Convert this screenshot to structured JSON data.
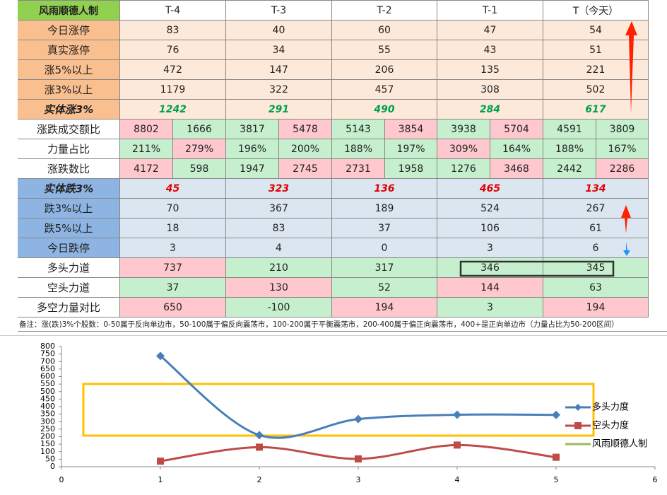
{
  "table": {
    "header": [
      "风雨顺德人制",
      "T-4",
      "T-3",
      "T-2",
      "T-1",
      "T（今天）"
    ],
    "rows": [
      {
        "label": "今日涨停",
        "label_bg": "#fabf8f",
        "cells": [
          "83",
          "40",
          "60",
          "47",
          "54"
        ],
        "fills": [
          "#fde9d9",
          "#fde9d9",
          "#fde9d9",
          "#fde9d9",
          "#fde9d9"
        ]
      },
      {
        "label": "真实涨停",
        "label_bg": "#fabf8f",
        "cells": [
          "76",
          "34",
          "55",
          "43",
          "51"
        ],
        "fills": [
          "#fde9d9",
          "#fde9d9",
          "#fde9d9",
          "#fde9d9",
          "#fde9d9"
        ]
      },
      {
        "label": "涨5%以上",
        "label_bg": "#fabf8f",
        "cells": [
          "472",
          "147",
          "206",
          "135",
          "221"
        ],
        "fills": [
          "#fde9d9",
          "#fde9d9",
          "#fde9d9",
          "#fde9d9",
          "#fde9d9"
        ]
      },
      {
        "label": "涨3%以上",
        "label_bg": "#fabf8f",
        "cells": [
          "1179",
          "322",
          "457",
          "308",
          "502"
        ],
        "fills": [
          "#fde9d9",
          "#fde9d9",
          "#fde9d9",
          "#fde9d9",
          "#fde9d9"
        ]
      },
      {
        "label": "实体涨3%",
        "label_bg": "#fabf8f",
        "cells": [
          "1242",
          "291",
          "490",
          "284",
          "617"
        ],
        "fills": [
          "#fde9d9",
          "#fde9d9",
          "#fde9d9",
          "#fde9d9",
          "#fde9d9"
        ],
        "text_color": "#00a050",
        "italic": true
      },
      {
        "label": "涨跌成交额比",
        "label_bg": "#ffffff",
        "cells": [
          "8802",
          "1666",
          "3817",
          "5478",
          "5143",
          "3854",
          "3938",
          "5704",
          "4591",
          "3809"
        ],
        "fills": [
          "#ffc7ce",
          "#c6efce",
          "#c6efce",
          "#ffc7ce",
          "#c6efce",
          "#ffc7ce",
          "#c6efce",
          "#ffc7ce",
          "#c6efce",
          "#c6efce"
        ]
      },
      {
        "label": "力量占比",
        "label_bg": "#ffffff",
        "cells": [
          "211%",
          "279%",
          "196%",
          "200%",
          "188%",
          "197%",
          "309%",
          "164%",
          "188%",
          "167%"
        ],
        "fills": [
          "#c6efce",
          "#ffc7ce",
          "#c6efce",
          "#c6efce",
          "#c6efce",
          "#c6efce",
          "#ffc7ce",
          "#c6efce",
          "#c6efce",
          "#c6efce"
        ]
      },
      {
        "label": "涨跌数比",
        "label_bg": "#ffffff",
        "cells": [
          "4172",
          "598",
          "1947",
          "2745",
          "2731",
          "1958",
          "1276",
          "3468",
          "2442",
          "2286"
        ],
        "fills": [
          "#ffc7ce",
          "#c6efce",
          "#c6efce",
          "#ffc7ce",
          "#ffc7ce",
          "#c6efce",
          "#c6efce",
          "#ffc7ce",
          "#c6efce",
          "#ffc7ce"
        ]
      },
      {
        "label": "实体跌3%",
        "label_bg": "#8db4e2",
        "cells": [
          "45",
          "323",
          "136",
          "465",
          "134"
        ],
        "fills": [
          "#dce6f1",
          "#dce6f1",
          "#dce6f1",
          "#dce6f1",
          "#dce6f1"
        ],
        "text_color": "#e00000",
        "italic": true
      },
      {
        "label": "跌3%以上",
        "label_bg": "#8db4e2",
        "cells": [
          "70",
          "367",
          "189",
          "524",
          "267"
        ],
        "fills": [
          "#dce6f1",
          "#dce6f1",
          "#dce6f1",
          "#dce6f1",
          "#dce6f1"
        ]
      },
      {
        "label": "跌5%以上",
        "label_bg": "#8db4e2",
        "cells": [
          "18",
          "83",
          "37",
          "106",
          "61"
        ],
        "fills": [
          "#dce6f1",
          "#dce6f1",
          "#dce6f1",
          "#dce6f1",
          "#dce6f1"
        ]
      },
      {
        "label": "今日跌停",
        "label_bg": "#8db4e2",
        "cells": [
          "3",
          "4",
          "0",
          "3",
          "6"
        ],
        "fills": [
          "#dce6f1",
          "#dce6f1",
          "#dce6f1",
          "#dce6f1",
          "#dce6f1"
        ]
      },
      {
        "label": "多头力道",
        "label_bg": "#ffffff",
        "cells": [
          "737",
          "210",
          "317",
          "346",
          "345"
        ],
        "fills": [
          "#ffc7ce",
          "#c6efce",
          "#c6efce",
          "#c6efce",
          "#c6efce"
        ]
      },
      {
        "label": "空头力道",
        "label_bg": "#ffffff",
        "cells": [
          "37",
          "130",
          "52",
          "144",
          "63"
        ],
        "fills": [
          "#c6efce",
          "#ffc7ce",
          "#c6efce",
          "#ffc7ce",
          "#c6efce"
        ]
      },
      {
        "label": "多空力量对比",
        "label_bg": "#ffffff",
        "cells": [
          "650",
          "-100",
          "194",
          "3",
          "194"
        ],
        "fills": [
          "#ffc7ce",
          "#c6efce",
          "#ffc7ce",
          "#c6efce",
          "#ffc7ce"
        ]
      }
    ],
    "note": "备注：涨(跌)3%个股数：0-50属于反向单边市，50-100属于偏反向震荡市，100-200属于平衡震荡市，200-400属于偏正向震荡市，400+是正向单边市（力量占比为50-200区间）"
  },
  "chart_data": {
    "type": "line",
    "x": [
      1,
      2,
      3,
      4,
      5
    ],
    "xlim": [
      0,
      6
    ],
    "xticks": [
      0,
      1,
      2,
      3,
      4,
      5,
      6
    ],
    "ylim": [
      0,
      800
    ],
    "yticks": [
      0,
      50,
      100,
      150,
      200,
      250,
      300,
      350,
      400,
      450,
      500,
      550,
      600,
      650,
      700,
      750,
      800
    ],
    "series": [
      {
        "name": "多头力度",
        "color": "#4a7ebb",
        "marker": "diamond",
        "values": [
          737,
          210,
          317,
          346,
          345
        ]
      },
      {
        "name": "空头力度",
        "color": "#be4b48",
        "marker": "square",
        "values": [
          37,
          130,
          52,
          144,
          63
        ]
      },
      {
        "name": "风雨顺德人制",
        "color": "#9bbb59",
        "values": [
          null,
          null,
          null,
          null,
          null
        ]
      }
    ]
  }
}
